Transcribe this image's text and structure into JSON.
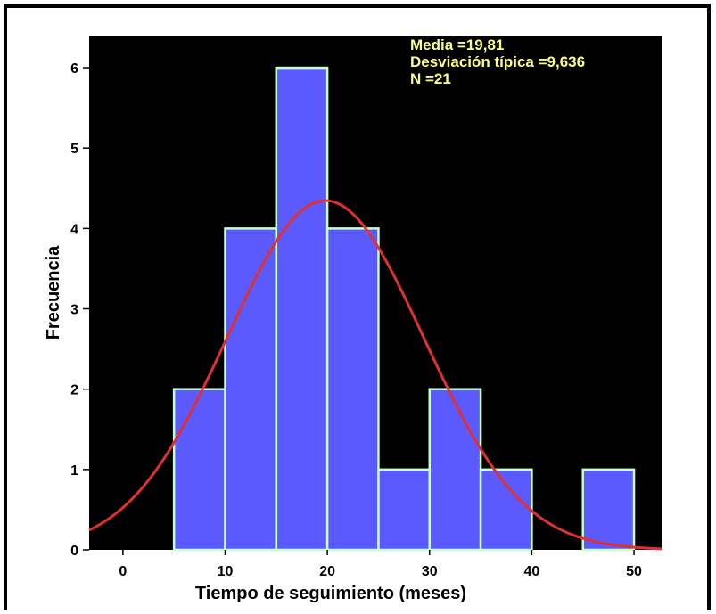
{
  "chart_data": {
    "type": "bar",
    "subtype": "histogram",
    "bins": [
      {
        "x0": 5,
        "x1": 10,
        "count": 2
      },
      {
        "x0": 10,
        "x1": 15,
        "count": 4
      },
      {
        "x0": 15,
        "x1": 20,
        "count": 6
      },
      {
        "x0": 20,
        "x1": 25,
        "count": 4
      },
      {
        "x0": 25,
        "x1": 30,
        "count": 1
      },
      {
        "x0": 30,
        "x1": 35,
        "count": 2
      },
      {
        "x0": 35,
        "x1": 40,
        "count": 1
      },
      {
        "x0": 40,
        "x1": 45,
        "count": 0
      },
      {
        "x0": 45,
        "x1": 50,
        "count": 1
      }
    ],
    "normal_curve": {
      "mean": 19.81,
      "sd": 9.636,
      "n": 21,
      "bin_width": 5
    },
    "xlabel": "Tiempo de seguimiento (meses)",
    "ylabel": "Frecuencia",
    "xlim": [
      -3.3,
      52.7
    ],
    "ylim": [
      0,
      6.4
    ],
    "x_ticks": [
      0,
      10,
      20,
      30,
      40,
      50
    ],
    "y_ticks": [
      0,
      1,
      2,
      3,
      4,
      5,
      6
    ],
    "grid": false,
    "stats_lines": [
      "Media =19,81",
      "Desviación típica =9,636",
      "N =21"
    ],
    "legend_placement": "top-right"
  },
  "colors": {
    "background": "#000000",
    "bar_fill": "#5a5aff",
    "bar_edge": "#c8ffc8",
    "curve": "#e03030",
    "stats_text": "#ffff80",
    "axis_text": "#000000"
  }
}
